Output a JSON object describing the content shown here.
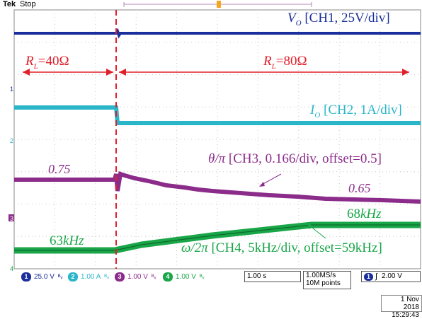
{
  "header": {
    "brand": "Tek",
    "run_state": "Stop"
  },
  "channels": [
    {
      "id": "1",
      "scale": "25.0 V",
      "color": "#1a2f9b"
    },
    {
      "id": "2",
      "scale": "1.00 A",
      "color": "#2bb5c9"
    },
    {
      "id": "3",
      "scale": "1.00 V",
      "color": "#8b2c8a"
    },
    {
      "id": "4",
      "scale": "1.00 V",
      "color": "#19a648"
    }
  ],
  "footer": {
    "timebase": "1.00 s",
    "sample_rate": "1.00MS/s",
    "record_length": "10M points",
    "trigger_channel": "1",
    "trigger_slope": "rising",
    "trigger_level": "2.00 V",
    "date": "1 Nov 2018",
    "time": "15:29:43"
  },
  "markers": [
    "1",
    "2",
    "3",
    "4"
  ],
  "annotations": {
    "vo_label": "V",
    "vo_sub": "O",
    "vo_desc": " [CH1, 25V/div]",
    "rl1_label": "R",
    "rl1_sub": "L",
    "rl1_val": "=40Ω",
    "rl2_label": "R",
    "rl2_sub": "L",
    "rl2_val": "=80Ω",
    "io_label": "I",
    "io_sub": "O",
    "io_desc": " [CH2, 1A/div]",
    "theta_label": "θ/π",
    "theta_desc": " [CH3, 0.166/div, offset=0.5]",
    "theta_start": "0.75",
    "theta_end": "0.65",
    "freq_start_num": "63",
    "freq_start_unit": "kHz",
    "freq_end_num": "68",
    "freq_end_unit": "kHz",
    "omega_label": "ω/2π",
    "omega_desc": " [CH4, 5kHz/div, offset=59kHz]"
  },
  "colors": {
    "grid": "#c8c8c8",
    "annotation_red": "#e0202a",
    "ch1": "#1a2f9b",
    "ch2": "#2bb5c9",
    "ch3": "#8b2c8a",
    "ch4": "#19a648"
  }
}
